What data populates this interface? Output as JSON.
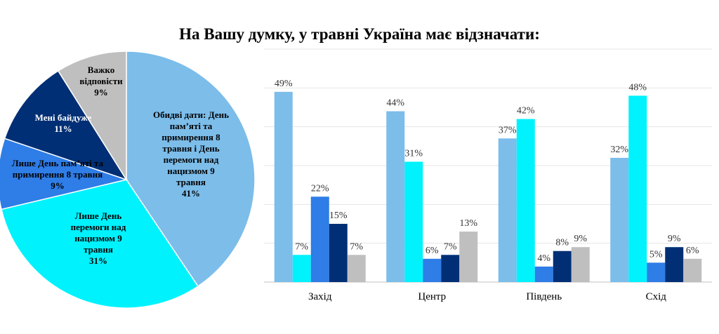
{
  "chart_data": [
    {
      "type": "pie",
      "slices": [
        {
          "label_lines": [
            "Обидві дати: День",
            "пам’яті та",
            "примирення 8",
            "травня і День",
            "перемоги над",
            "нацизмом 9",
            "травня"
          ],
          "value": 41,
          "value_label": "41%",
          "color": "#7cbdea"
        },
        {
          "label_lines": [
            "Лише День",
            "перемоги над",
            "нацизмом 9",
            "травня"
          ],
          "value": 31,
          "value_label": "31%",
          "color": "#00f2fd"
        },
        {
          "label_lines": [
            "Лише День пам’яті та",
            "примирення 8 травня"
          ],
          "value": 9,
          "value_label": "9%",
          "color": "#2f7de6"
        },
        {
          "label_lines": [
            "Мені байдуже"
          ],
          "value": 11,
          "value_label": "11%",
          "color": "#002f75"
        },
        {
          "label_lines": [
            "Важко",
            "відповісти"
          ],
          "value": 9,
          "value_label": "9%",
          "color": "#bfbfbf"
        }
      ]
    },
    {
      "type": "bar",
      "title": "На Вашу думку, у травні Україна має відзначати:",
      "categories": [
        "Захід",
        "Центр",
        "Південь",
        "Схід"
      ],
      "series": [
        {
          "values": [
            49,
            44,
            37,
            32
          ],
          "color": "#7cbdea"
        },
        {
          "values": [
            7,
            31,
            42,
            48
          ],
          "color": "#00f2fd"
        },
        {
          "values": [
            22,
            6,
            4,
            5
          ],
          "color": "#2f7de6"
        },
        {
          "values": [
            15,
            7,
            8,
            9
          ],
          "color": "#002f75"
        },
        {
          "values": [
            7,
            13,
            9,
            6
          ],
          "color": "#bfbfbf"
        }
      ],
      "value_labels": [
        [
          "49%",
          "7%",
          "22%",
          "15%",
          "7%"
        ],
        [
          "44%",
          "31%",
          "6%",
          "7%",
          "13%"
        ],
        [
          "37%",
          "42%",
          "4%",
          "8%",
          "9%"
        ],
        [
          "32%",
          "48%",
          "5%",
          "9%",
          "6%"
        ]
      ],
      "ylim": [
        0,
        60
      ],
      "grid": true
    }
  ]
}
